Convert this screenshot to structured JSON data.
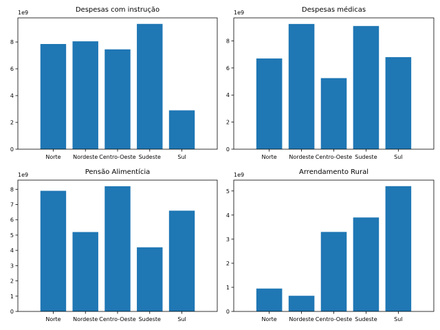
{
  "chart_data": [
    {
      "type": "bar",
      "title": "Despesas com instrução",
      "categories": [
        "Norte",
        "Nordeste",
        "Centro-Oeste",
        "Sudeste",
        "Sul"
      ],
      "values": [
        7850000000.0,
        8050000000.0,
        7450000000.0,
        9350000000.0,
        2900000000.0
      ],
      "ylim": [
        0,
        9800000000.0
      ],
      "yticks": [
        0,
        2,
        4,
        6,
        8
      ],
      "ytick_labels": [
        "0",
        "2",
        "4",
        "6",
        "8"
      ],
      "offset_text": "1e9",
      "color": "#1f77b4",
      "grid": false
    },
    {
      "type": "bar",
      "title": "Despesas médicas",
      "categories": [
        "Norte",
        "Nordeste",
        "Centro-Oeste",
        "Sudeste",
        "Sul"
      ],
      "values": [
        6700000000.0,
        9250000000.0,
        5250000000.0,
        9100000000.0,
        6800000000.0
      ],
      "ylim": [
        0,
        9700000000.0
      ],
      "yticks": [
        0,
        2,
        4,
        6,
        8
      ],
      "ytick_labels": [
        "0",
        "2",
        "4",
        "6",
        "8"
      ],
      "offset_text": "1e9",
      "color": "#1f77b4",
      "grid": false
    },
    {
      "type": "bar",
      "title": "Pensão Alimentícia",
      "categories": [
        "Norte",
        "Nordeste",
        "Centro-Oeste",
        "Sudeste",
        "Sul"
      ],
      "values": [
        7900000000.0,
        5200000000.0,
        8200000000.0,
        4200000000.0,
        6600000000.0
      ],
      "ylim": [
        0,
        8600000000.0
      ],
      "yticks": [
        0,
        1,
        2,
        3,
        4,
        5,
        6,
        7,
        8
      ],
      "ytick_labels": [
        "0",
        "1",
        "2",
        "3",
        "4",
        "5",
        "6",
        "7",
        "8"
      ],
      "offset_text": "1e9",
      "color": "#1f77b4",
      "grid": false
    },
    {
      "type": "bar",
      "title": "Arrendamento Rural",
      "categories": [
        "Norte",
        "Nordeste",
        "Centro-Oeste",
        "Sudeste",
        "Sul"
      ],
      "values": [
        950000000.0,
        650000000.0,
        3300000000.0,
        3900000000.0,
        5200000000.0
      ],
      "ylim": [
        0,
        5450000000.0
      ],
      "yticks": [
        0,
        1,
        2,
        3,
        4,
        5
      ],
      "ytick_labels": [
        "0",
        "1",
        "2",
        "3",
        "4",
        "5"
      ],
      "offset_text": "1e9",
      "color": "#1f77b4",
      "grid": false
    }
  ]
}
